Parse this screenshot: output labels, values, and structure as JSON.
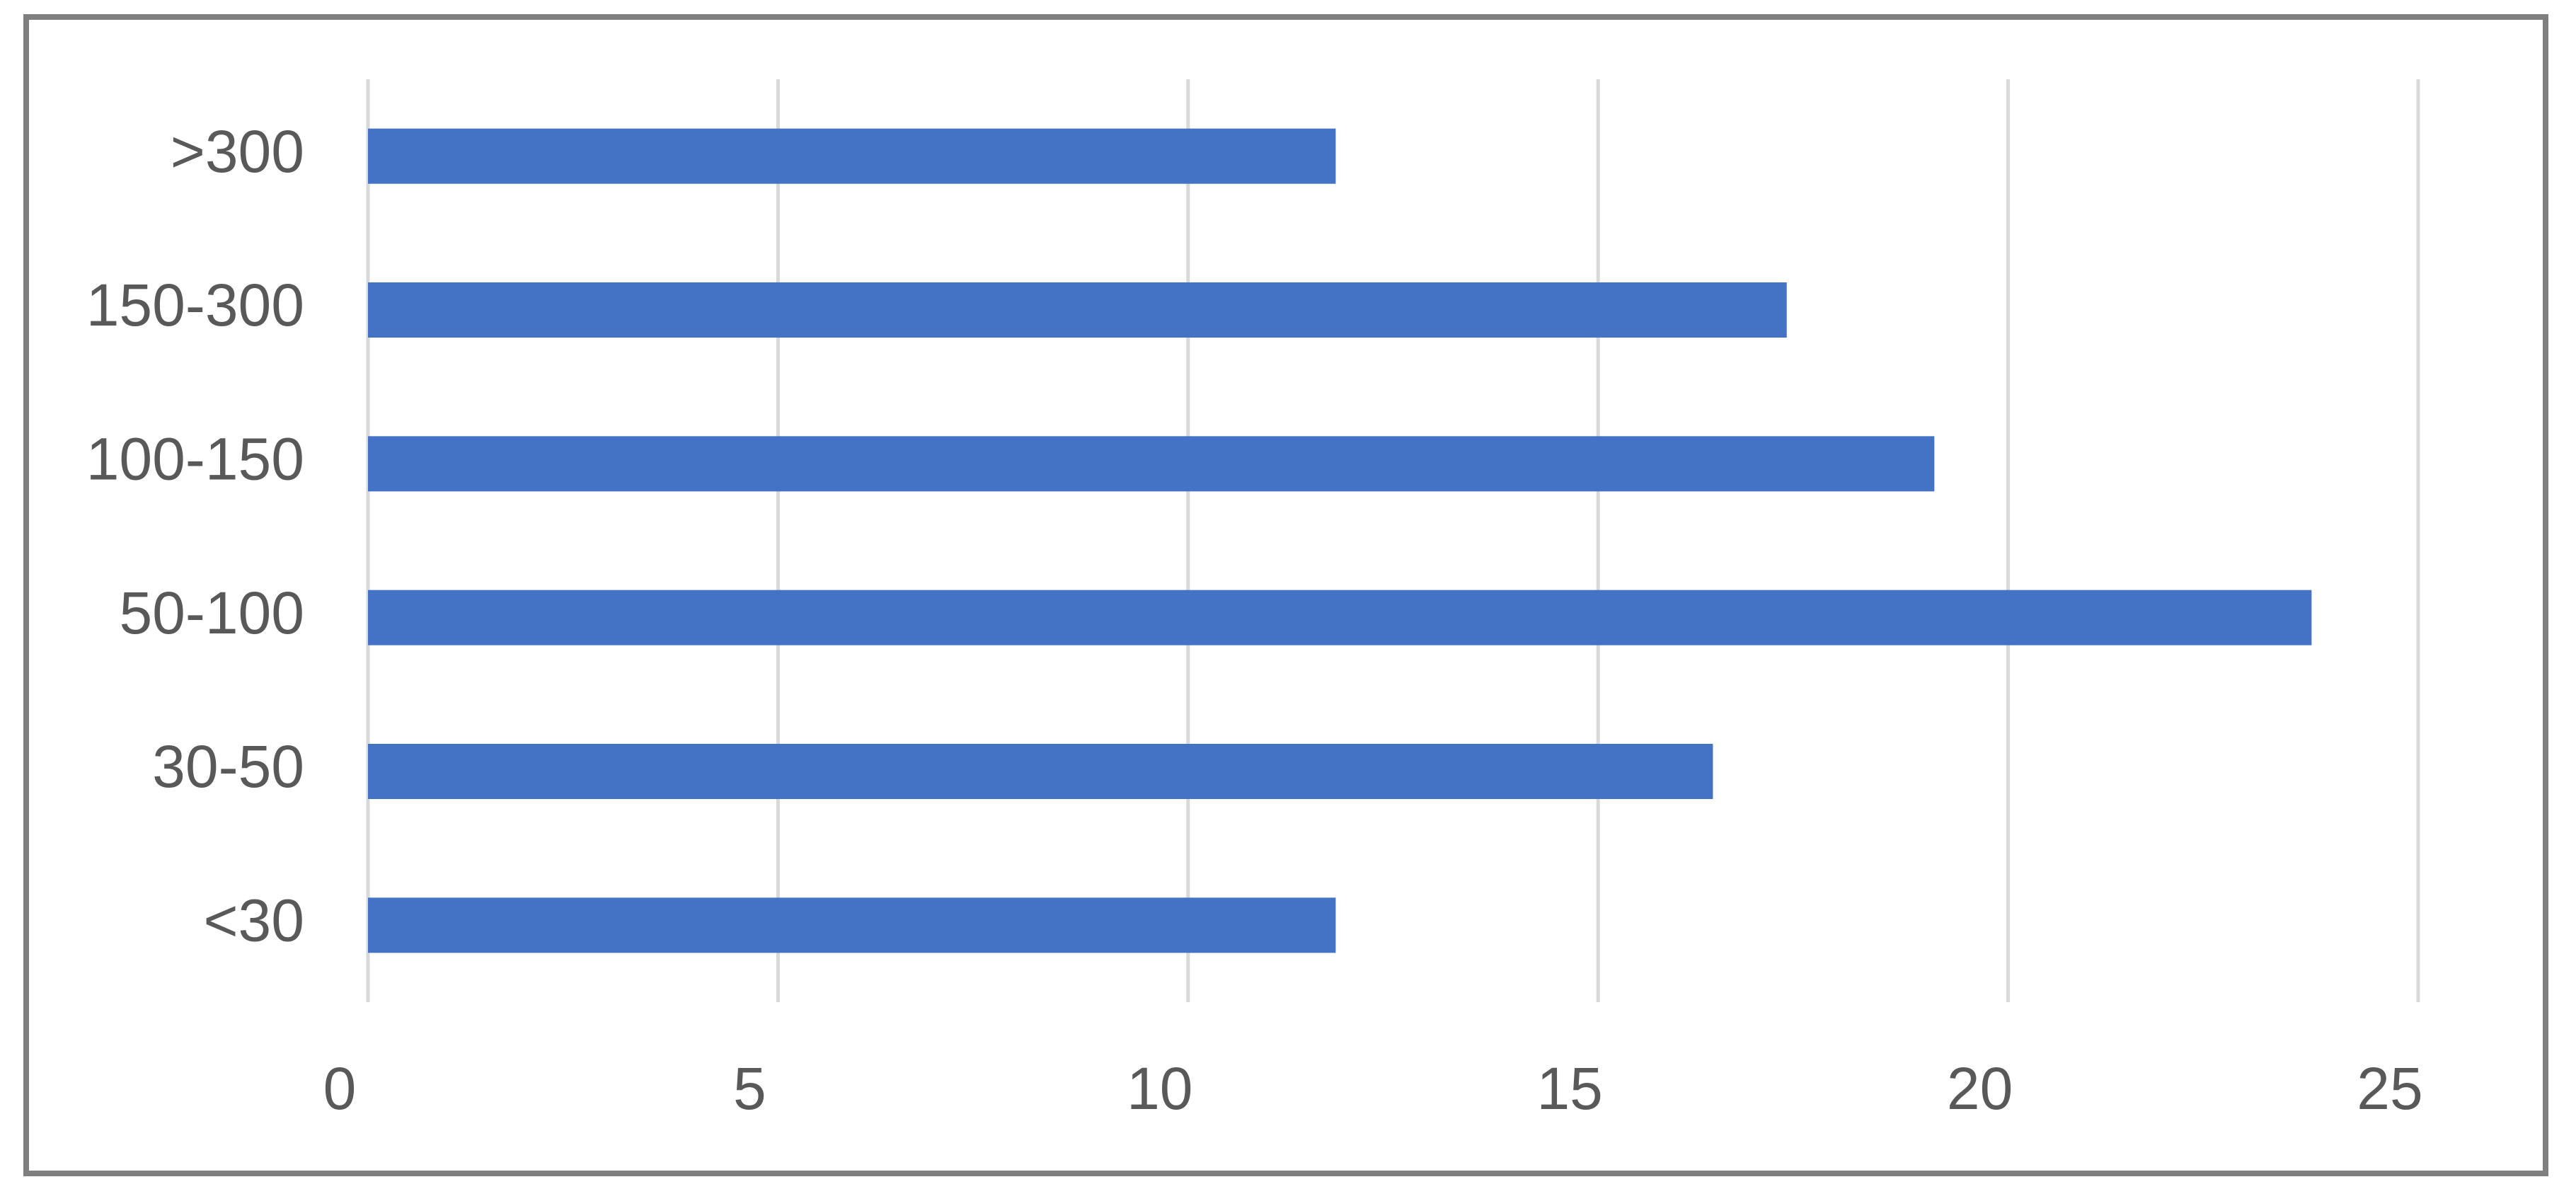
{
  "chart_data": {
    "type": "bar",
    "orientation": "horizontal",
    "categories": [
      "<30",
      "30-50",
      "50-100",
      "100-150",
      "150-300",
      ">300"
    ],
    "values": [
      11.8,
      16.4,
      23.7,
      19.1,
      17.3,
      11.8
    ],
    "color": "#4472c4",
    "xlim": [
      0,
      25
    ],
    "xticks": [
      0,
      5,
      10,
      15,
      20,
      25
    ],
    "grid": true
  }
}
